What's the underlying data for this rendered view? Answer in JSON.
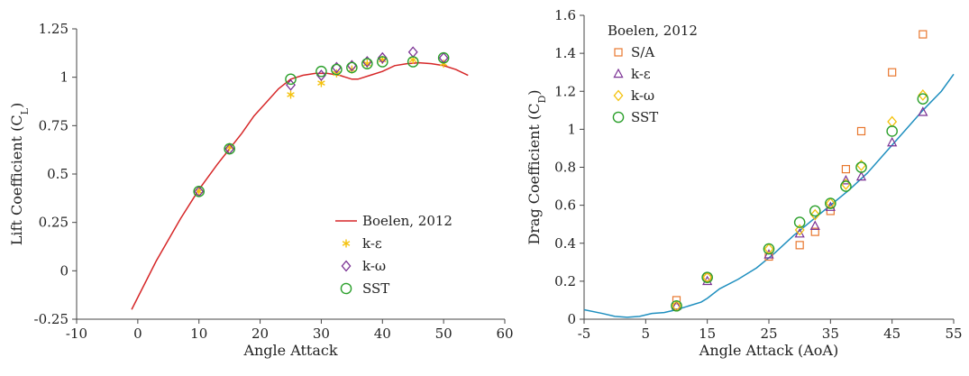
{
  "chart_data": [
    {
      "type": "line",
      "xlabel": "Angle Attack",
      "ylabel": "Lift Coefficient (C",
      "ylabel_sub": "L",
      "ylabel_end": ")",
      "xlim": [
        -10,
        60
      ],
      "ylim": [
        -0.25,
        1.25
      ],
      "xticks": [
        -10,
        0,
        10,
        20,
        30,
        40,
        50,
        60
      ],
      "yticks": [
        -0.25,
        0,
        0.25,
        0.5,
        0.75,
        1,
        1.25
      ],
      "ytick_labels": [
        "-0.25",
        "0",
        "0.25",
        "0.5",
        "0.75",
        "1",
        "1.25"
      ],
      "grid": false,
      "legend_position": "bottom-right",
      "series": [
        {
          "name": "Boelen, 2012",
          "kind": "line",
          "color": "#d62728",
          "x": [
            -1,
            3,
            7,
            10,
            13,
            15,
            17,
            19,
            21,
            23,
            25,
            27,
            29,
            31,
            33,
            34,
            35,
            36,
            38,
            40,
            42,
            44,
            46,
            48,
            50,
            52,
            54
          ],
          "y": [
            -0.2,
            0.05,
            0.27,
            0.42,
            0.55,
            0.63,
            0.71,
            0.8,
            0.87,
            0.94,
            0.99,
            1.01,
            1.02,
            1.02,
            1.01,
            1.0,
            0.99,
            0.99,
            1.01,
            1.03,
            1.06,
            1.07,
            1.075,
            1.07,
            1.06,
            1.04,
            1.01
          ]
        },
        {
          "name": "k-ε",
          "kind": "scatter",
          "marker": "star",
          "color": "#f4c20d",
          "x": [
            10,
            15,
            25,
            30,
            32.5,
            35,
            37.5,
            40,
            45,
            50
          ],
          "y": [
            0.41,
            0.64,
            0.91,
            0.97,
            1.02,
            1.04,
            1.07,
            1.09,
            1.09,
            1.07
          ]
        },
        {
          "name": "k-ω",
          "kind": "scatter",
          "marker": "diamond",
          "color": "#7b3294",
          "x": [
            10,
            15,
            25,
            30,
            32.5,
            35,
            37.5,
            40,
            45,
            50
          ],
          "y": [
            0.41,
            0.63,
            0.96,
            1.01,
            1.05,
            1.06,
            1.08,
            1.1,
            1.13,
            1.1
          ]
        },
        {
          "name": "SST",
          "kind": "scatter",
          "marker": "circle",
          "color": "#2ca02c",
          "x": [
            10,
            15,
            25,
            30,
            32.5,
            35,
            37.5,
            40,
            45,
            50
          ],
          "y": [
            0.41,
            0.63,
            0.99,
            1.03,
            1.04,
            1.05,
            1.07,
            1.08,
            1.08,
            1.1
          ]
        }
      ]
    },
    {
      "type": "line",
      "xlabel": "Angle Attack (AoA)",
      "ylabel": "Drag Coefficient (C",
      "ylabel_sub": "D",
      "ylabel_end": ")",
      "xlim": [
        -5,
        55
      ],
      "ylim": [
        0,
        1.6
      ],
      "xticks": [
        -5,
        5,
        15,
        25,
        35,
        45,
        55
      ],
      "yticks": [
        0,
        0.2,
        0.4,
        0.6,
        0.8,
        1,
        1.2,
        1.4,
        1.6
      ],
      "ytick_labels": [
        "0",
        "0.2",
        "0.4",
        "0.6",
        "0.8",
        "1",
        "1.2",
        "1.4",
        "1.6"
      ],
      "grid": false,
      "legend_position": "top-left",
      "legend_title": "Boelen, 2012",
      "series": [
        {
          "name": "",
          "kind": "line",
          "color": "#1f8fbf",
          "x": [
            -5,
            -2,
            0,
            2,
            4,
            6,
            8,
            10,
            12,
            14,
            15,
            17,
            20,
            23,
            26,
            29,
            32,
            35,
            38,
            41,
            44,
            47,
            50,
            53,
            55
          ],
          "y": [
            0.05,
            0.03,
            0.015,
            0.01,
            0.015,
            0.03,
            0.035,
            0.05,
            0.07,
            0.09,
            0.11,
            0.16,
            0.21,
            0.27,
            0.35,
            0.44,
            0.52,
            0.6,
            0.68,
            0.77,
            0.88,
            0.99,
            1.1,
            1.2,
            1.29
          ]
        },
        {
          "name": "S/A",
          "kind": "scatter",
          "marker": "square",
          "color": "#e8772e",
          "x": [
            10,
            15,
            25,
            30,
            32.5,
            35,
            37.5,
            40,
            45,
            50
          ],
          "y": [
            0.1,
            0.22,
            0.33,
            0.39,
            0.46,
            0.57,
            0.79,
            0.99,
            1.3,
            1.5
          ]
        },
        {
          "name": "k-ε",
          "kind": "scatter",
          "marker": "triangle",
          "color": "#7b3294",
          "x": [
            10,
            15,
            25,
            30,
            32.5,
            35,
            37.5,
            40,
            45,
            50
          ],
          "y": [
            0.07,
            0.2,
            0.34,
            0.45,
            0.49,
            0.59,
            0.73,
            0.75,
            0.93,
            1.09
          ]
        },
        {
          "name": "k-ω",
          "kind": "scatter",
          "marker": "diamond",
          "color": "#f4c20d",
          "x": [
            10,
            15,
            25,
            30,
            32.5,
            35,
            37.5,
            40,
            45,
            50
          ],
          "y": [
            0.07,
            0.22,
            0.37,
            0.47,
            0.55,
            0.61,
            0.71,
            0.81,
            1.04,
            1.18
          ]
        },
        {
          "name": "SST",
          "kind": "scatter",
          "marker": "circle",
          "color": "#2ca02c",
          "x": [
            10,
            15,
            25,
            30,
            32.5,
            35,
            37.5,
            40,
            45,
            50
          ],
          "y": [
            0.07,
            0.22,
            0.37,
            0.51,
            0.57,
            0.61,
            0.7,
            0.8,
            0.99,
            1.16
          ]
        }
      ]
    }
  ]
}
